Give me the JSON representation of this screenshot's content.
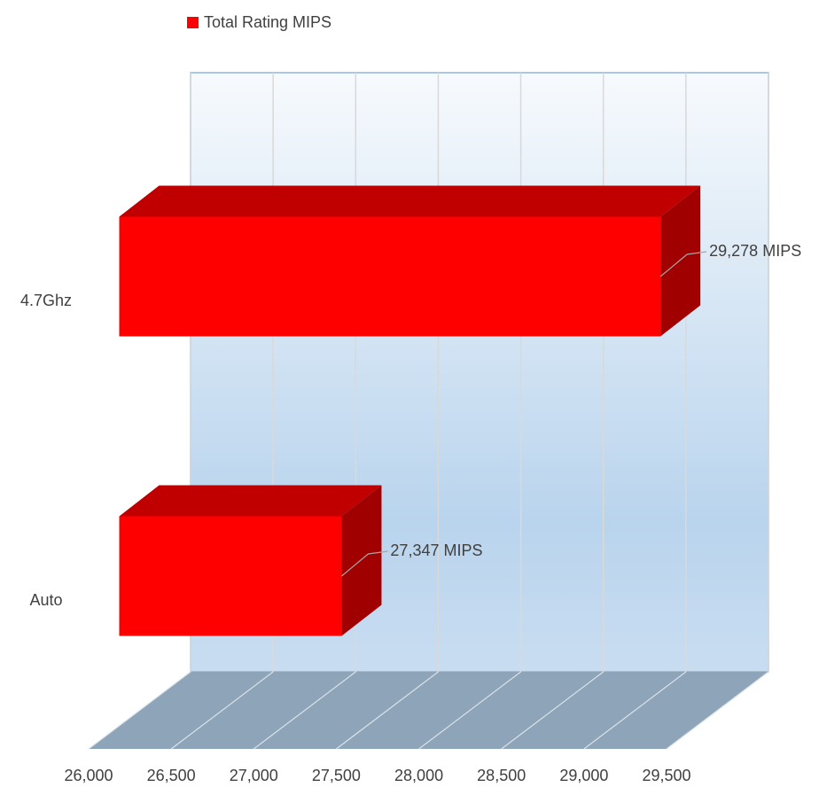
{
  "chart_data": {
    "type": "bar3d",
    "orientation": "horizontal",
    "categories": [
      "4.7Ghz",
      "Auto"
    ],
    "series": [
      {
        "name": "Total Rating MIPS",
        "color": "#ff0000",
        "values": [
          29278,
          27347
        ],
        "value_labels": [
          "29,278 MIPS",
          "27,347 MIPS"
        ]
      }
    ],
    "xlim": [
      26000,
      29500
    ],
    "xticks": [
      {
        "value": 26000,
        "label": "26,000"
      },
      {
        "value": 26500,
        "label": "26,500"
      },
      {
        "value": 27000,
        "label": "27,000"
      },
      {
        "value": 27500,
        "label": "27,500"
      },
      {
        "value": 28000,
        "label": "28,000"
      },
      {
        "value": 28500,
        "label": "28,500"
      },
      {
        "value": 29000,
        "label": "29,000"
      },
      {
        "value": 29500,
        "label": "29,500"
      }
    ],
    "grid": true,
    "legend": "top"
  }
}
